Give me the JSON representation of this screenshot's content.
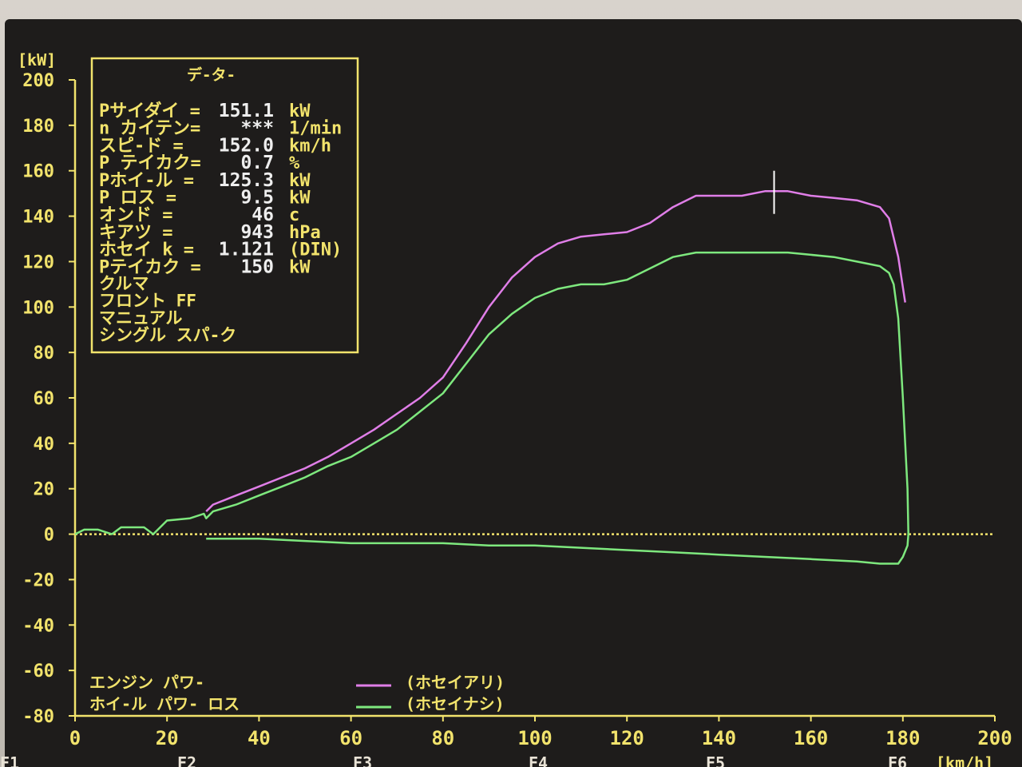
{
  "colors": {
    "screen": "#1e1c1b",
    "axis": "#f2e36c",
    "text": "#f2e36c",
    "value_text": "#eeeeee",
    "series_corrected": "#e07ee8",
    "series_uncorrected": "#7ee87e",
    "zero_line": "#f2e36c",
    "cursor": "#ffffff"
  },
  "info_panel": {
    "title": "デ-タ-",
    "rows": [
      {
        "label": "Pサイダイ =",
        "value": "151.1",
        "unit": "kW"
      },
      {
        "label": "n カイテン=",
        "value": "***",
        "unit": "1/min"
      },
      {
        "label": "スピ-ド =",
        "value": "152.0",
        "unit": "km/h"
      },
      {
        "label": "P テイカク=",
        "value": "0.7",
        "unit": "%"
      },
      {
        "label": "Pホイ-ル =",
        "value": "125.3",
        "unit": "kW"
      },
      {
        "label": "P ロス =",
        "value": "9.5",
        "unit": "kW"
      },
      {
        "label": "オンド =",
        "value": "46",
        "unit": "c"
      },
      {
        "label": "キアツ =",
        "value": "943",
        "unit": "hPa"
      },
      {
        "label": "ホセイ k =",
        "value": "1.121",
        "unit": "(DIN)"
      },
      {
        "label": "Pテイカク =",
        "value": "150",
        "unit": "kW"
      }
    ],
    "notes": [
      "クルマ",
      "フロント FF",
      "マニュアル",
      "シングル スパ-ク"
    ]
  },
  "legend": {
    "label_1": "エンジン パワ-",
    "label_2": "ホイ-ル パワ- ロス",
    "series_1": "(ホセイアリ)",
    "series_2": "(ホセイナシ)"
  },
  "function_keys": [
    "F1",
    "F2",
    "F3",
    "F4",
    "F5",
    "F6"
  ],
  "chart_data": {
    "type": "line",
    "yunit": "[kW]",
    "xunit": "[km/h]",
    "xlim": [
      0,
      200
    ],
    "ylim": [
      -80,
      200
    ],
    "xticks": [
      0,
      20,
      40,
      60,
      80,
      100,
      120,
      140,
      160,
      180,
      200
    ],
    "yticks": [
      200,
      180,
      160,
      140,
      120,
      100,
      80,
      60,
      40,
      20,
      0,
      -20,
      -40,
      -60,
      -80
    ],
    "zero_line": true,
    "cursor_x": 152,
    "series": [
      {
        "name": "(ホセイアリ)",
        "color": "#e07ee8",
        "x": [
          28.5,
          30,
          35,
          40,
          45,
          50,
          55,
          60,
          65,
          70,
          75,
          80,
          85,
          90,
          95,
          100,
          105,
          110,
          115,
          120,
          125,
          130,
          135,
          140,
          145,
          150,
          155,
          160,
          165,
          170,
          175,
          177,
          179,
          180.5
        ],
        "y": [
          10,
          13,
          17,
          21,
          25,
          29,
          34,
          40,
          46,
          53,
          60,
          69,
          84,
          100,
          113,
          122,
          128,
          131,
          132,
          133,
          137,
          144,
          149,
          149,
          149,
          151,
          151,
          149,
          148,
          147,
          144,
          139,
          122,
          102
        ]
      },
      {
        "name": "(ホセイナシ)",
        "color": "#7ee87e",
        "x": [
          0,
          2,
          5,
          8,
          10,
          15,
          17,
          20,
          25,
          28,
          28.5,
          30,
          35,
          40,
          45,
          50,
          55,
          60,
          65,
          70,
          75,
          80,
          85,
          90,
          95,
          100,
          105,
          110,
          115,
          120,
          125,
          130,
          135,
          140,
          145,
          150,
          155,
          160,
          165,
          170,
          175,
          177,
          178,
          179,
          180,
          180.5,
          181,
          181.2,
          181,
          180,
          179,
          175,
          170,
          160,
          150,
          140,
          130,
          120,
          110,
          100,
          90,
          80,
          70,
          60,
          50,
          40,
          30,
          28.5
        ],
        "y": [
          0,
          2,
          2,
          0,
          3,
          3,
          0,
          6,
          7,
          9,
          7,
          10,
          13,
          17,
          21,
          25,
          30,
          34,
          40,
          46,
          54,
          62,
          75,
          88,
          97,
          104,
          108,
          110,
          110,
          112,
          117,
          122,
          124,
          124,
          124,
          124,
          124,
          123,
          122,
          120,
          118,
          115,
          110,
          95,
          60,
          40,
          20,
          0,
          -5,
          -10,
          -13,
          -13,
          -12,
          -11,
          -10,
          -9,
          -8,
          -7,
          -6,
          -5,
          -5,
          -4,
          -4,
          -4,
          -3,
          -2,
          -2,
          -2
        ]
      }
    ]
  }
}
